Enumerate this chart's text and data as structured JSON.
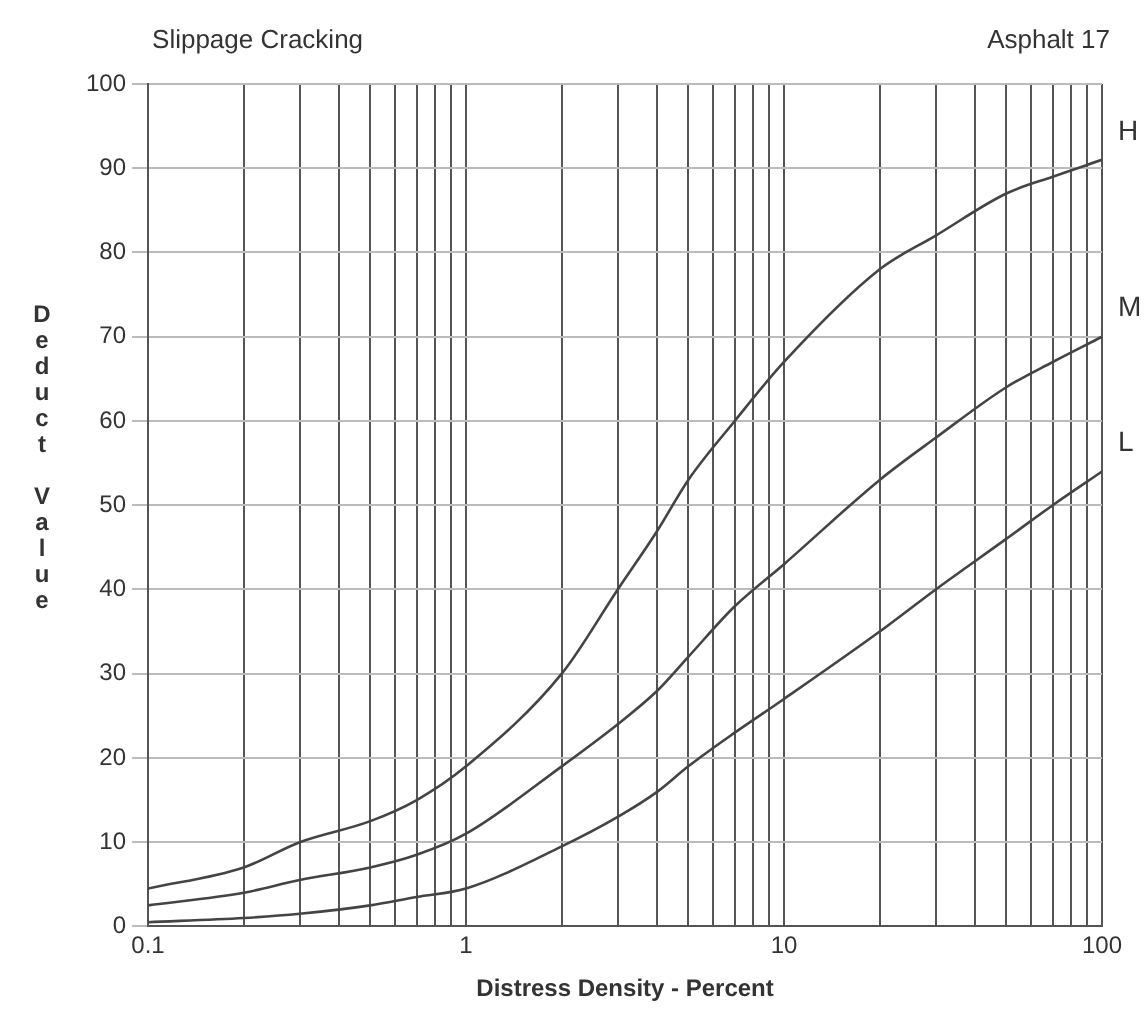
{
  "chart_data": {
    "type": "line",
    "title": "Slippage Cracking",
    "subtitle": "Asphalt 17",
    "xlabel": "Distress Density - Percent",
    "ylabel": "Deduct Value",
    "log": "x",
    "grid": true,
    "legend": false,
    "marker": "none",
    "line_style": "solid",
    "x": [
      0.1,
      0.2,
      0.3,
      0.5,
      0.7,
      1,
      2,
      3,
      4,
      5,
      7,
      10,
      20,
      30,
      50,
      70,
      100
    ],
    "series": [
      {
        "name": "H",
        "color": "#444444",
        "values": [
          4.5,
          7,
          10,
          12.5,
          15,
          19,
          30,
          40,
          47,
          53,
          60,
          67,
          78,
          82,
          87,
          89,
          91
        ]
      },
      {
        "name": "M",
        "color": "#444444",
        "values": [
          2.5,
          4,
          5.5,
          7,
          8.5,
          11,
          19,
          24,
          28,
          32,
          38,
          43,
          53,
          58,
          64,
          67,
          70
        ]
      },
      {
        "name": "L",
        "color": "#444444",
        "values": [
          0.5,
          1,
          1.5,
          2.5,
          3.5,
          4.5,
          9.5,
          13,
          16,
          19,
          23,
          27,
          35,
          40,
          46,
          50,
          54
        ]
      }
    ],
    "xlim": [
      0.1,
      100
    ],
    "xticks": [
      0.1,
      {
        "value": 0.2,
        "label": null
      },
      {
        "value": 0.3,
        "label": null
      },
      {
        "value": 0.4,
        "label": null
      },
      {
        "value": 0.5,
        "label": null
      },
      {
        "value": 0.6,
        "label": null
      },
      {
        "value": 0.7,
        "label": null
      },
      {
        "value": 0.8,
        "label": null
      },
      {
        "value": 0.9,
        "label": null
      },
      1,
      {
        "value": 2,
        "label": null
      },
      {
        "value": 3,
        "label": null
      },
      {
        "value": 4,
        "label": null
      },
      {
        "value": 5,
        "label": null
      },
      {
        "value": 6,
        "label": null
      },
      {
        "value": 7,
        "label": null
      },
      {
        "value": 8,
        "label": null
      },
      {
        "value": 9,
        "label": null
      },
      10,
      {
        "value": 20,
        "label": null
      },
      {
        "value": 30,
        "label": null
      },
      {
        "value": 40,
        "label": null
      },
      {
        "value": 50,
        "label": null
      },
      {
        "value": 60,
        "label": null
      },
      {
        "value": 70,
        "label": null
      },
      {
        "value": 80,
        "label": null
      },
      {
        "value": 90,
        "label": null
      },
      100
    ],
    "ylim": [
      0,
      100
    ],
    "yticks": [
      0,
      10,
      20,
      30,
      40,
      50,
      60,
      70,
      80,
      90,
      100
    ]
  }
}
